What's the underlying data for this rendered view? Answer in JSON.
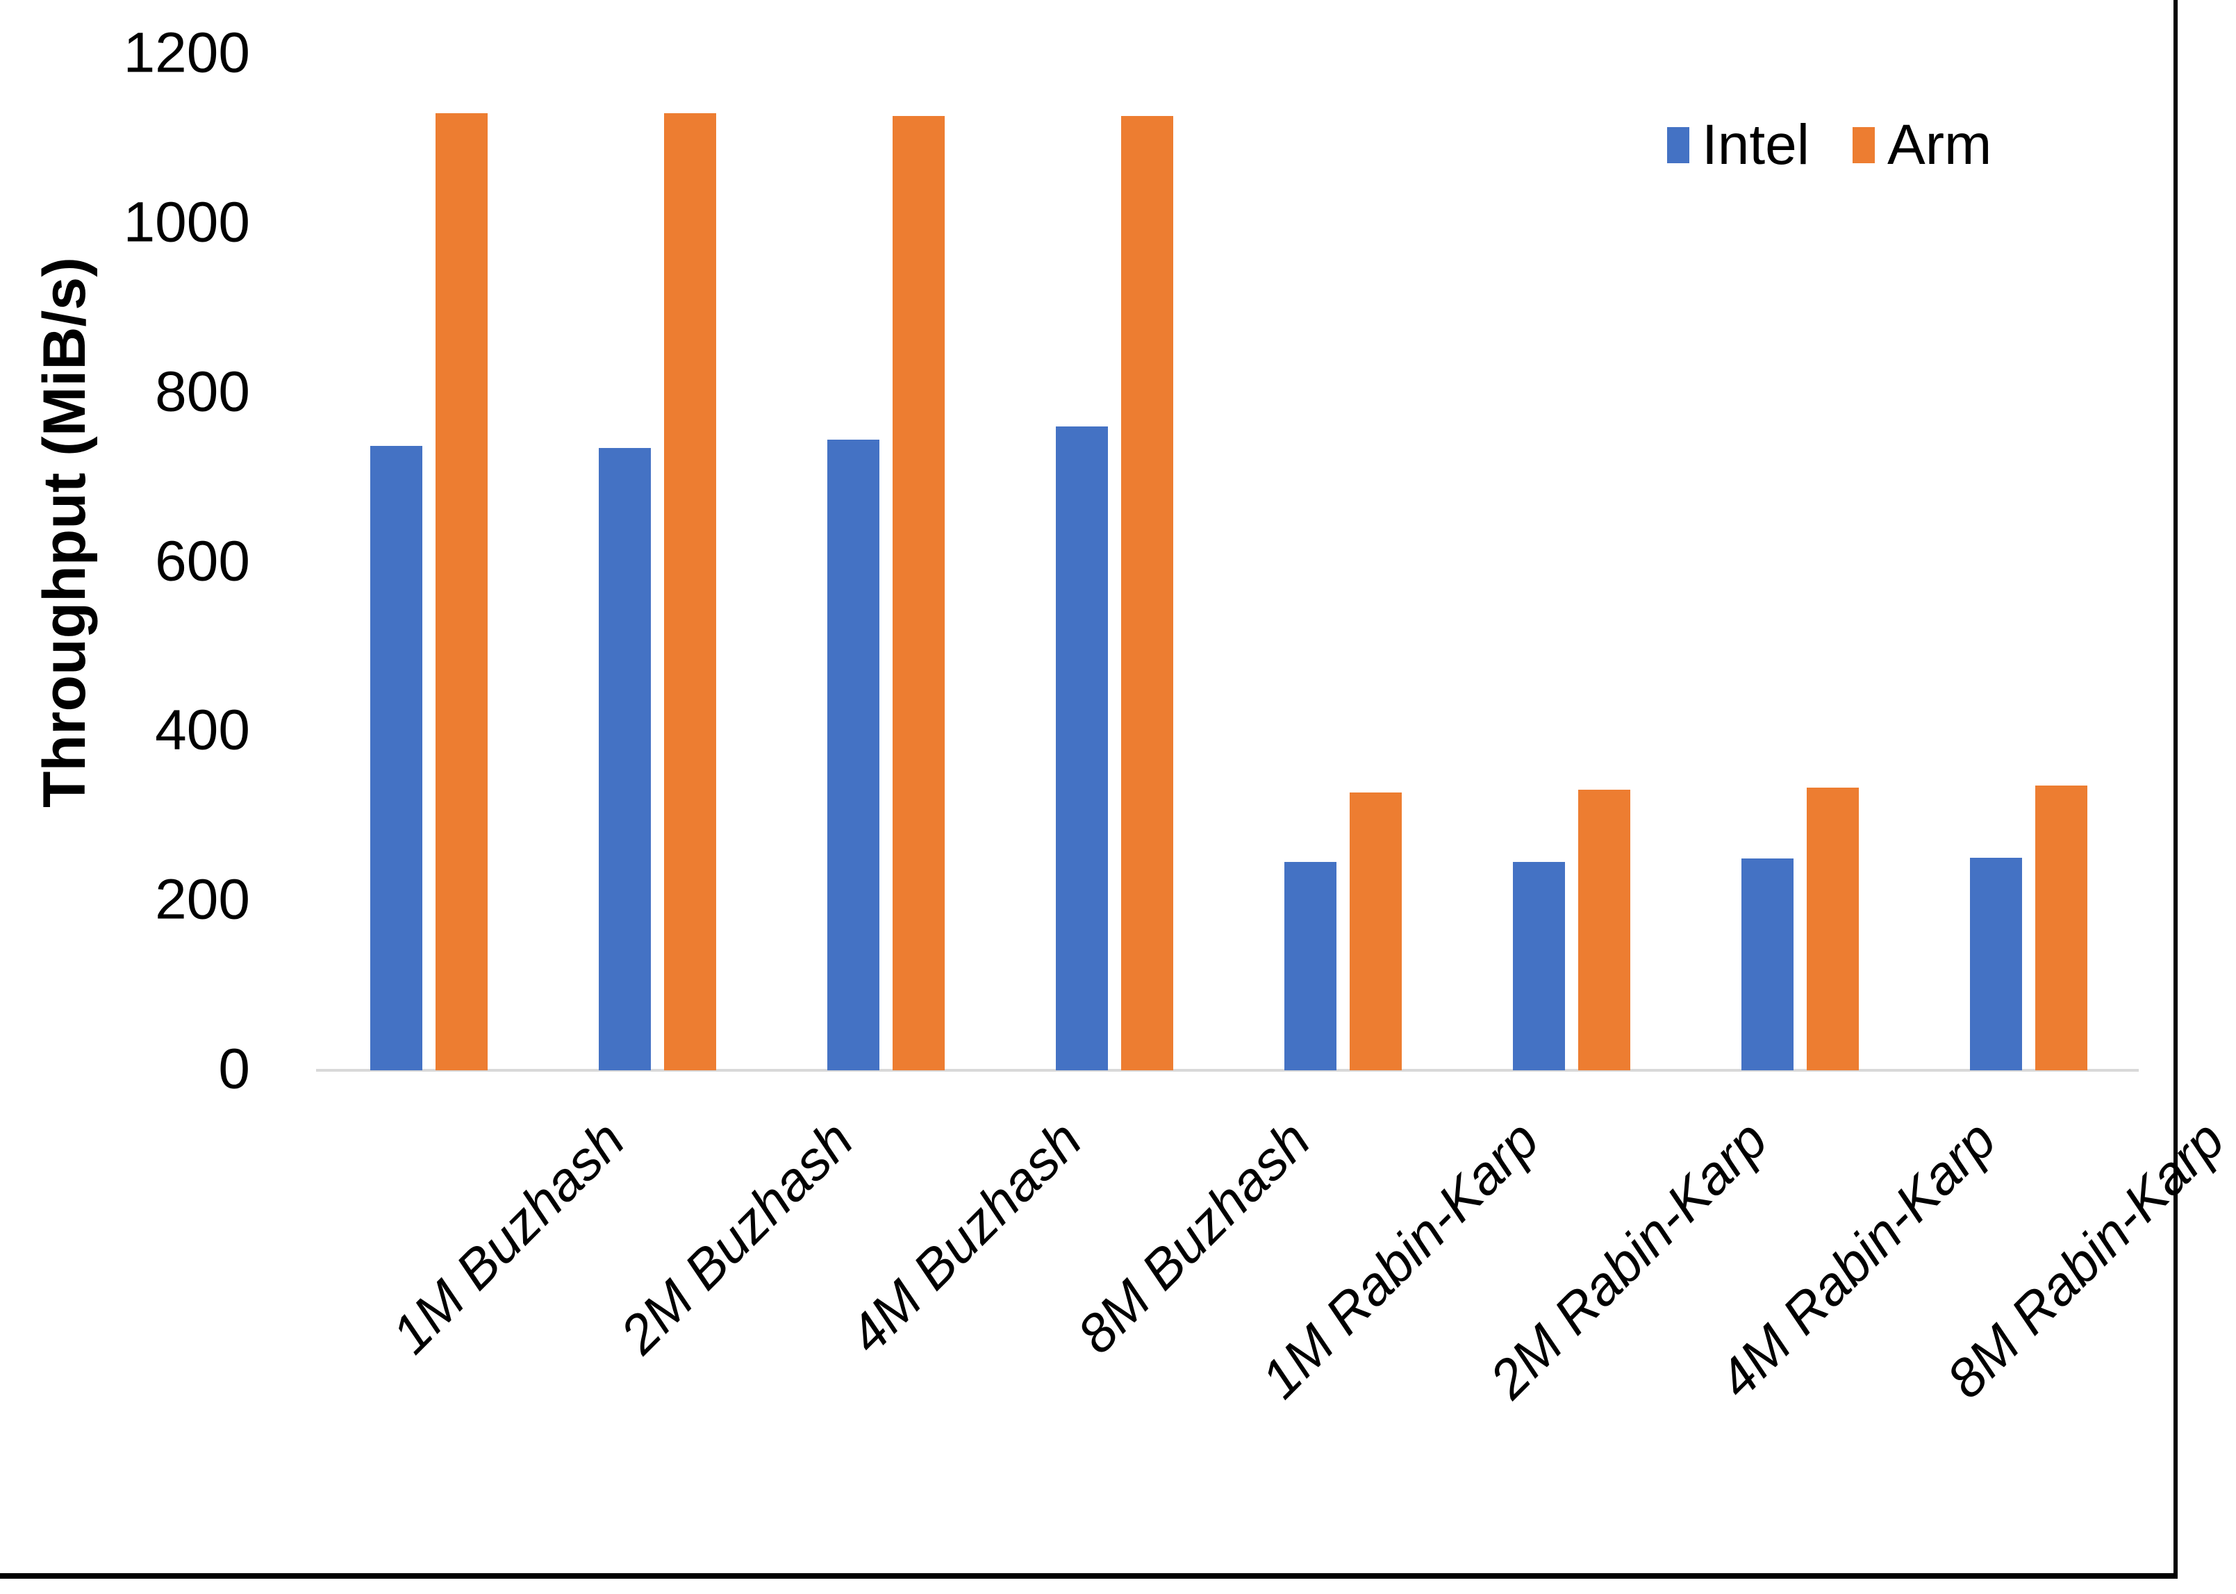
{
  "chart_data": {
    "type": "bar",
    "title": "",
    "xlabel": "",
    "ylabel": "Throughput (MiB/s)",
    "ylim": [
      0,
      1200
    ],
    "ytick_step": 200,
    "yticks": [
      0,
      200,
      400,
      600,
      800,
      1000,
      1200
    ],
    "grid": false,
    "legend_position": "top-right",
    "axis_line_color": "#D9D9D9",
    "categories": [
      "1M Buzhash",
      "2M Buzhash",
      "4M Buzhash",
      "8M Buzhash",
      "1M Rabin-Karp",
      "2M Rabin-Karp",
      "4M Rabin-Karp",
      "8M Rabin-Karp"
    ],
    "series": [
      {
        "name": "Intel",
        "color": "#4472C4",
        "values": [
          737,
          735,
          745,
          760,
          246,
          246,
          250,
          251
        ]
      },
      {
        "name": "Arm",
        "color": "#ED7D31",
        "values": [
          1130,
          1130,
          1127,
          1127,
          328,
          331,
          334,
          336
        ]
      }
    ]
  }
}
